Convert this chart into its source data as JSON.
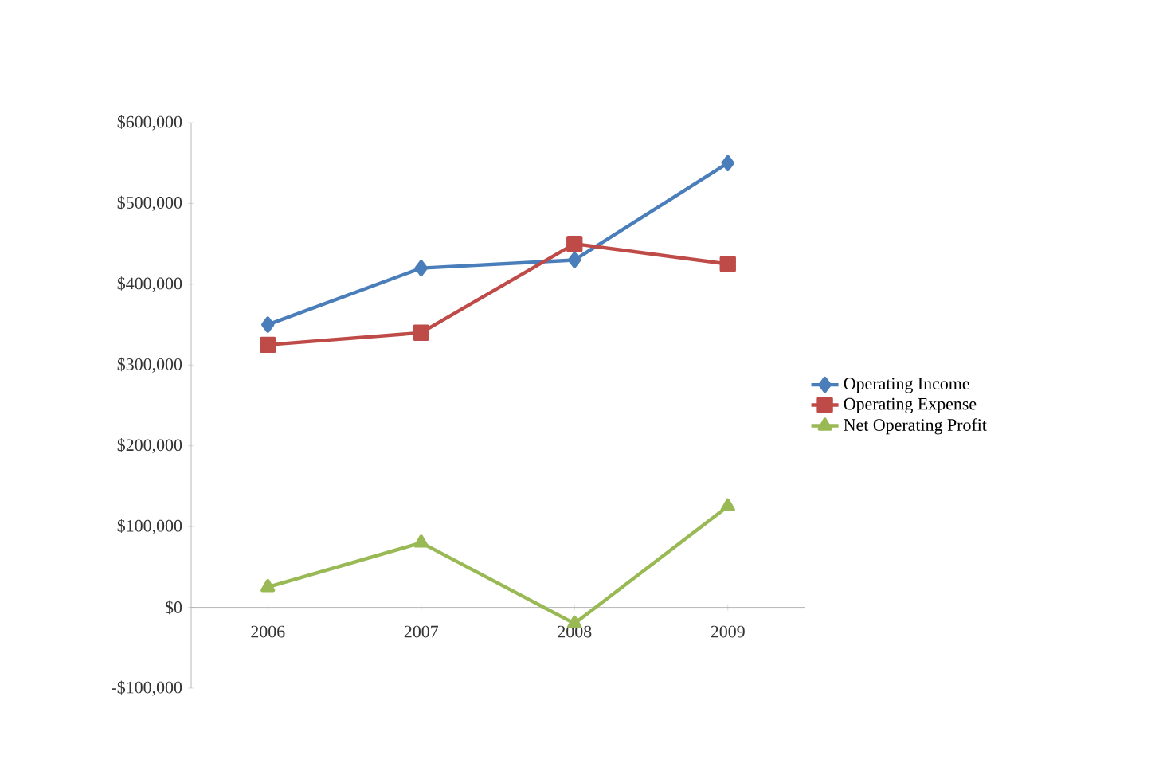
{
  "chart_data": {
    "type": "line",
    "categories": [
      "2006",
      "2007",
      "2008",
      "2009"
    ],
    "series": [
      {
        "name": "Operating Income",
        "color": "#4a7ebb",
        "marker": "diamond",
        "values": [
          350000,
          420000,
          430000,
          550000
        ]
      },
      {
        "name": "Operating Expense",
        "color": "#be4b48",
        "marker": "square",
        "values": [
          325000,
          340000,
          450000,
          425000
        ]
      },
      {
        "name": "Net Operating Profit",
        "color": "#98b954",
        "marker": "triangle",
        "values": [
          25000,
          80000,
          -20000,
          125000
        ]
      }
    ],
    "ylim": [
      -100000,
      600000
    ],
    "yticks": [
      {
        "value": -100000,
        "label": "-$100,000"
      },
      {
        "value": 0,
        "label": "$0"
      },
      {
        "value": 100000,
        "label": "$100,000"
      },
      {
        "value": 200000,
        "label": "$200,000"
      },
      {
        "value": 300000,
        "label": "$300,000"
      },
      {
        "value": 400000,
        "label": "$400,000"
      },
      {
        "value": 500000,
        "label": "$500,000"
      },
      {
        "value": 600000,
        "label": "$600,000"
      }
    ],
    "legend": "right",
    "line_style": "solid"
  }
}
